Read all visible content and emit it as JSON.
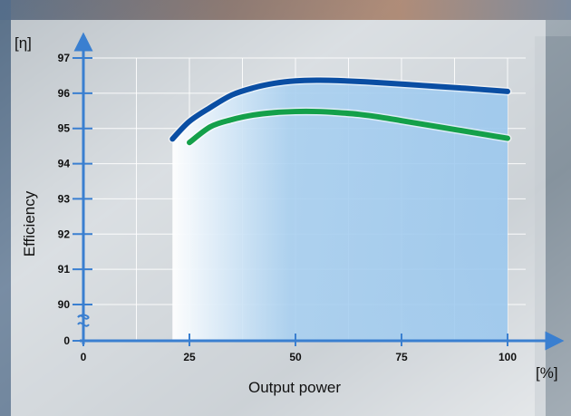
{
  "chart_data": {
    "type": "line",
    "y_unit_label": "[η]",
    "x_unit_label": "[%]",
    "xlabel": "Output power",
    "ylabel": "Efficiency",
    "x_ticks": [
      0,
      25,
      50,
      75,
      100
    ],
    "y_ticks": [
      0,
      90,
      91,
      92,
      93,
      94,
      95,
      96,
      97
    ],
    "y_axis_break": "between 0 and 90",
    "xlim": [
      0,
      100
    ],
    "ylim": [
      90,
      97
    ],
    "grid": true,
    "series": [
      {
        "color": "#0a4ea3",
        "points": [
          [
            21,
            94.7
          ],
          [
            25,
            95.2
          ],
          [
            30,
            95.6
          ],
          [
            35,
            95.95
          ],
          [
            40,
            96.15
          ],
          [
            45,
            96.28
          ],
          [
            50,
            96.35
          ],
          [
            55,
            96.37
          ],
          [
            60,
            96.36
          ],
          [
            70,
            96.3
          ],
          [
            80,
            96.22
          ],
          [
            90,
            96.14
          ],
          [
            100,
            96.05
          ]
        ]
      },
      {
        "color": "#14a04a",
        "points": [
          [
            25,
            94.6
          ],
          [
            30,
            95.05
          ],
          [
            35,
            95.25
          ],
          [
            40,
            95.38
          ],
          [
            45,
            95.45
          ],
          [
            50,
            95.48
          ],
          [
            55,
            95.48
          ],
          [
            60,
            95.45
          ],
          [
            65,
            95.4
          ],
          [
            70,
            95.32
          ],
          [
            75,
            95.22
          ],
          [
            80,
            95.12
          ],
          [
            85,
            95.02
          ],
          [
            90,
            94.92
          ],
          [
            95,
            94.82
          ],
          [
            100,
            94.72
          ]
        ]
      }
    ]
  },
  "colors": {
    "grid": "#ffffff",
    "axis": "#3a7fd0",
    "fill_dark": "#9cc8ee",
    "fill_light": "#ffffff"
  }
}
